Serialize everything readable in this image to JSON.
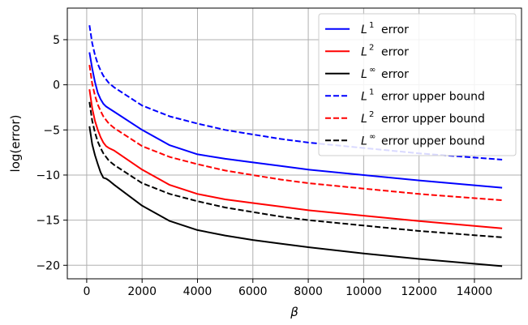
{
  "chart_data": {
    "type": "line",
    "title": "",
    "xlabel": "β",
    "ylabel": "log(error)",
    "xlim": [
      -700,
      15700
    ],
    "ylim": [
      -21.5,
      8.5
    ],
    "xticks": [
      0,
      2000,
      4000,
      6000,
      8000,
      10000,
      12000,
      14000
    ],
    "xtick_labels": [
      "0",
      "2000",
      "4000",
      "6000",
      "8000",
      "10000",
      "12000",
      "14000"
    ],
    "yticks": [
      5,
      0,
      -5,
      -10,
      -15,
      -20
    ],
    "ytick_labels": [
      "5",
      "0",
      "−5",
      "−10",
      "−15",
      "−20"
    ],
    "grid": true,
    "legend_position": "top-right",
    "series": [
      {
        "name": "error",
        "sup": "1",
        "color": "#0000ff",
        "style": "solid",
        "x": [
          100,
          200,
          300,
          400,
          500,
          600,
          700,
          800,
          1000,
          2000,
          3000,
          4000,
          5000,
          6000,
          7000,
          8000,
          10000,
          12000,
          15000
        ],
        "y": [
          3.6,
          1.8,
          0.3,
          -0.9,
          -1.6,
          -2.1,
          -2.4,
          -2.6,
          -3.0,
          -5.0,
          -6.7,
          -7.7,
          -8.2,
          -8.6,
          -9.0,
          -9.4,
          -10.0,
          -10.6,
          -11.4
        ]
      },
      {
        "name": "error",
        "sup": "2",
        "color": "#ff0000",
        "style": "solid",
        "x": [
          100,
          200,
          300,
          400,
          500,
          600,
          700,
          800,
          1000,
          2000,
          3000,
          4000,
          5000,
          6000,
          7000,
          8000,
          10000,
          12000,
          15000
        ],
        "y": [
          -0.5,
          -2.6,
          -4.0,
          -5.0,
          -5.8,
          -6.4,
          -6.8,
          -7.0,
          -7.3,
          -9.4,
          -11.1,
          -12.1,
          -12.7,
          -13.1,
          -13.5,
          -13.9,
          -14.5,
          -15.1,
          -15.9
        ]
      },
      {
        "name": "error",
        "sup": "∞",
        "color": "#000000",
        "style": "solid",
        "x": [
          100,
          200,
          300,
          400,
          500,
          600,
          700,
          800,
          1000,
          2000,
          3000,
          4000,
          5000,
          6000,
          7000,
          8000,
          10000,
          12000,
          15000
        ],
        "y": [
          -4.6,
          -6.6,
          -7.8,
          -8.8,
          -9.7,
          -10.3,
          -10.4,
          -10.6,
          -11.1,
          -13.4,
          -15.1,
          -16.1,
          -16.7,
          -17.2,
          -17.6,
          -18.0,
          -18.7,
          -19.3,
          -20.1
        ]
      },
      {
        "name": "error upper bound",
        "sup": "1",
        "color": "#0000ff",
        "style": "dashed",
        "x": [
          100,
          200,
          300,
          400,
          500,
          600,
          700,
          800,
          1000,
          2000,
          3000,
          4000,
          5000,
          6000,
          7000,
          8000,
          10000,
          12000,
          15000
        ],
        "y": [
          6.6,
          4.6,
          3.3,
          2.3,
          1.6,
          1.0,
          0.6,
          0.2,
          -0.3,
          -2.3,
          -3.5,
          -4.3,
          -5.0,
          -5.5,
          -6.0,
          -6.4,
          -7.0,
          -7.6,
          -8.3
        ]
      },
      {
        "name": "error upper bound",
        "sup": "2",
        "color": "#ff0000",
        "style": "dashed",
        "x": [
          100,
          200,
          300,
          400,
          500,
          600,
          700,
          800,
          1000,
          2000,
          3000,
          4000,
          5000,
          6000,
          7000,
          8000,
          10000,
          12000,
          15000
        ],
        "y": [
          2.2,
          0.1,
          -1.2,
          -2.2,
          -2.9,
          -3.5,
          -3.9,
          -4.3,
          -4.8,
          -6.8,
          -8.0,
          -8.8,
          -9.5,
          -10.0,
          -10.5,
          -10.9,
          -11.5,
          -12.1,
          -12.8
        ]
      },
      {
        "name": "error upper bound",
        "sup": "∞",
        "color": "#000000",
        "style": "dashed",
        "x": [
          100,
          200,
          300,
          400,
          500,
          600,
          700,
          800,
          1000,
          2000,
          3000,
          4000,
          5000,
          6000,
          7000,
          8000,
          10000,
          12000,
          15000
        ],
        "y": [
          -1.9,
          -4.0,
          -5.3,
          -6.3,
          -7.0,
          -7.6,
          -8.0,
          -8.4,
          -8.9,
          -10.9,
          -12.1,
          -12.9,
          -13.6,
          -14.1,
          -14.6,
          -15.0,
          -15.6,
          -16.2,
          -16.9
        ]
      }
    ]
  }
}
